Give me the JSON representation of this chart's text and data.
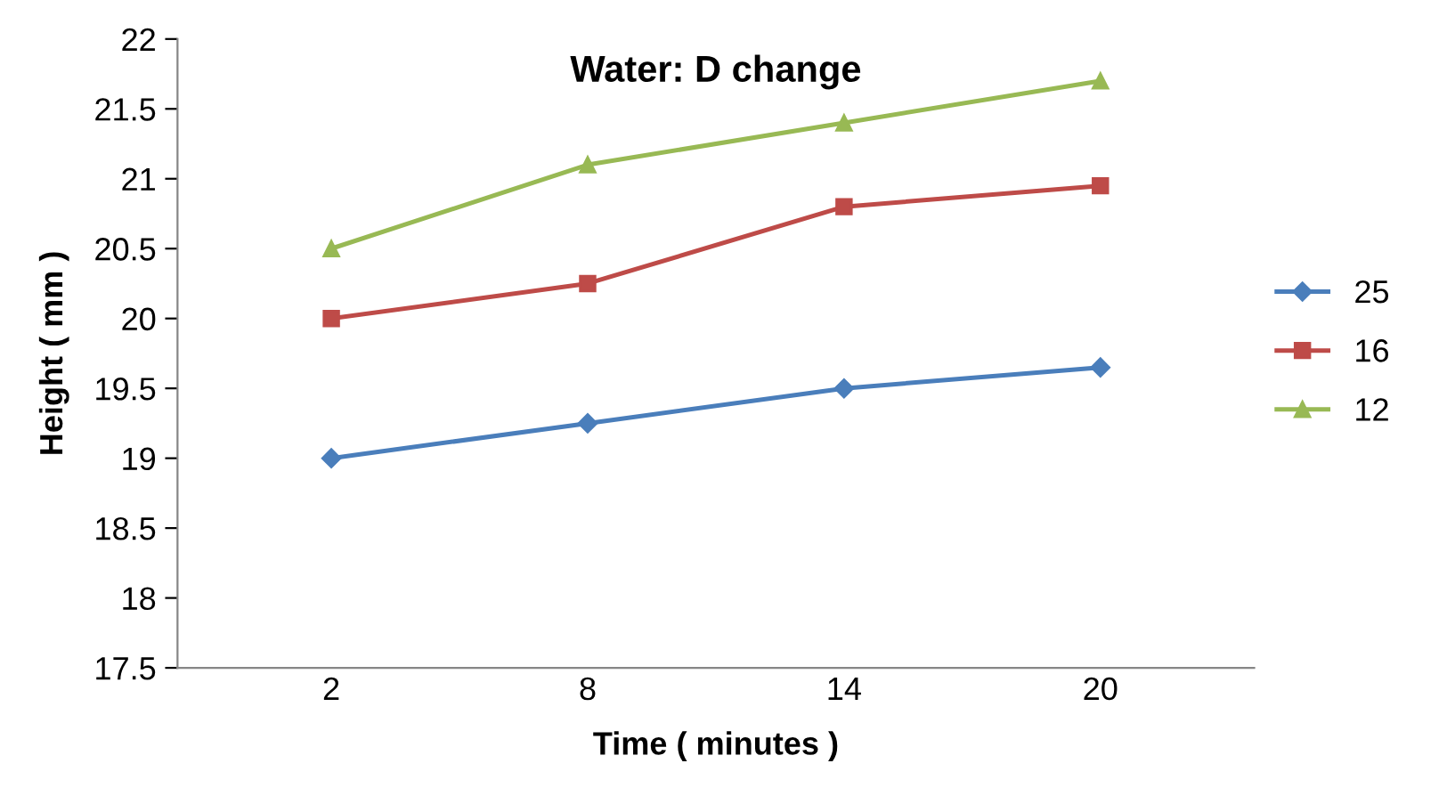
{
  "chart_data": {
    "type": "line",
    "title": "Water: D change",
    "xlabel": "Time ( minutes )",
    "ylabel": "Height ( mm )",
    "categories": [
      "2",
      "8",
      "14",
      "20"
    ],
    "series": [
      {
        "name": "25",
        "color": "#4a7ebb",
        "marker": "diamond",
        "values": [
          19.0,
          19.25,
          19.5,
          19.65
        ]
      },
      {
        "name": "16",
        "color": "#be4b48",
        "marker": "square",
        "values": [
          20.0,
          20.25,
          20.8,
          20.95
        ]
      },
      {
        "name": "12",
        "color": "#98b954",
        "marker": "triangle",
        "values": [
          20.5,
          21.1,
          21.4,
          21.7
        ]
      }
    ],
    "ylim": [
      17.5,
      22
    ],
    "yticks": [
      17.5,
      18,
      18.5,
      19,
      19.5,
      20,
      20.5,
      21,
      21.5,
      22
    ],
    "grid": false,
    "legend": "right",
    "line_style": "solid"
  }
}
